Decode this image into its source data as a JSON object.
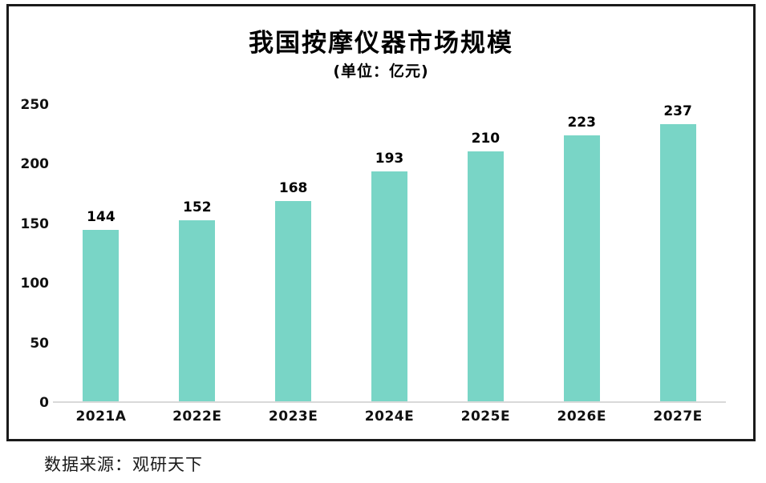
{
  "chart_data": {
    "type": "bar",
    "title": "我国按摩仪器市场规模",
    "subtitle": "(单位：亿元)",
    "categories": [
      "2021A",
      "2022E",
      "2023E",
      "2024E",
      "2025E",
      "2026E",
      "2027E"
    ],
    "values": [
      144,
      152,
      168,
      193,
      210,
      223,
      237
    ],
    "xlabel": "",
    "ylabel": "",
    "ylim": [
      0,
      250
    ],
    "yticks": [
      0,
      50,
      100,
      150,
      200,
      250
    ],
    "grid": false,
    "legend": "none",
    "bar_color": "#79d5c6",
    "axis_line_color": "#d9d9d9"
  },
  "source": {
    "label": "数据来源：观研天下"
  },
  "colors": {
    "bar": "#79d5c6",
    "border": "#1a1a1a",
    "text": "#111111",
    "baseline": "#d9d9d9"
  }
}
